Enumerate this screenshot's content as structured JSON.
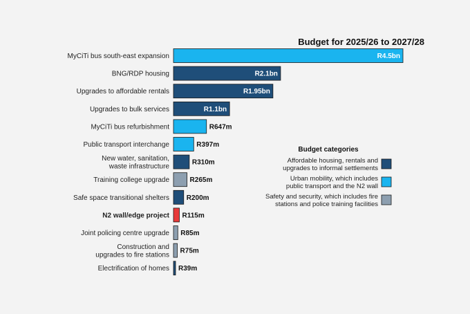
{
  "chart_data": {
    "type": "bar",
    "orientation": "horizontal",
    "title": "Budget for 2025/26 to 2027/28",
    "unit": "R million",
    "xlim": [
      0,
      4500
    ],
    "categories": [
      "MyCiTi bus south-east expansion",
      "BNG/RDP housing",
      "Upgrades to affordable rentals",
      "Upgrades to bulk services",
      "MyCiTi bus refurbishment",
      "Public transport interchange",
      "New water, sanitation,\nwaste infrastructure",
      "Training college upgrade",
      "Safe space transitional shelters",
      "N2 wall/edge project",
      "Joint policing centre upgrade",
      "Construction and\nupgrades to fire stations",
      "Electrification of homes"
    ],
    "values": [
      4500,
      2100,
      1950,
      1100,
      647,
      397,
      310,
      265,
      200,
      115,
      85,
      75,
      39
    ],
    "value_labels": [
      "R4.5bn",
      "R2.1bn",
      "R1.95bn",
      "R1.1bn",
      "R647m",
      "R397m",
      "R310m",
      "R265m",
      "R200m",
      "R115m",
      "R85m",
      "R75m",
      "R39m"
    ],
    "bar_categories": [
      "mobility",
      "housing",
      "housing",
      "housing",
      "mobility",
      "mobility",
      "housing",
      "safety",
      "housing",
      "highlight",
      "safety",
      "safety",
      "housing"
    ],
    "highlighted": "N2 wall/edge project",
    "legend": {
      "title": "Budget categories",
      "items": [
        {
          "key": "housing",
          "label": "Affordable housing, rentals and\nupgrades to informal settlements"
        },
        {
          "key": "mobility",
          "label": "Urban mobility, which includes\npublic transport and the N2 wall"
        },
        {
          "key": "safety",
          "label": "Safety and security, which includes fire\nstations and police training facilities"
        }
      ]
    },
    "colors": {
      "housing": "#1f4e79",
      "mobility": "#1ab4ef",
      "safety": "#8d9fb0",
      "highlight": "#e83a3a",
      "stroke": "#1a1a1a"
    }
  }
}
